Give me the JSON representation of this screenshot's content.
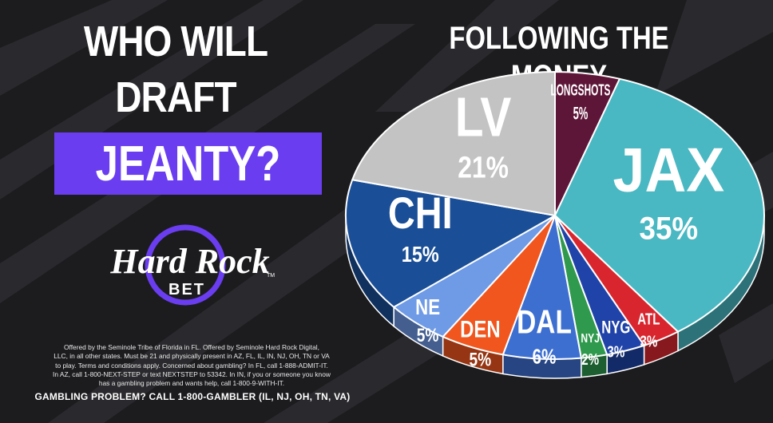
{
  "headline": {
    "line1": "WHO WILL",
    "line2": "DRAFT",
    "line3": "JEANTY?"
  },
  "brand": {
    "name": "Hard Rock",
    "sub": "BET",
    "tm": "TM"
  },
  "disclaimer": {
    "lines": [
      "Offered by the Seminole Tribe of Florida in FL. Offered by Seminole Hard Rock Digital,",
      "LLC, in all other states. Must be 21 and physically present in AZ, FL, IL, IN, NJ, OH, TN or VA",
      "to play. Terms and conditions apply. Concerned about gambling? In FL, call 1-888-ADMIT-IT.",
      "In AZ, call 1-800-NEXT-STEP or text NEXTSTEP to 53342. In IN, if you or someone you know",
      "has a gambling problem and wants help, call 1-800-9-WITH-IT."
    ],
    "helpline": "GAMBLING PROBLEM? CALL 1-800-GAMBLER (IL, NJ, OH, TN, VA)"
  },
  "colors": {
    "background": "#1c1c1f",
    "stripes": "#2a2a2e",
    "accent": "#6b3df0"
  },
  "chart_data": {
    "type": "pie",
    "title": "FOLLOWING THE MONEY",
    "categories": [
      "LONGSHOTS",
      "JAX",
      "ATL",
      "NYG",
      "NYJ",
      "DAL",
      "DEN",
      "NE",
      "CHI",
      "LV"
    ],
    "values": [
      5,
      35,
      3,
      3,
      2,
      6,
      5,
      5,
      15,
      21
    ],
    "value_labels": [
      "5%",
      "35%",
      "3%",
      "3%",
      "2%",
      "6%",
      "5%",
      "5%",
      "15%",
      "21%"
    ],
    "colors": [
      "#5e1638",
      "#49b8c2",
      "#d9262e",
      "#1f43a8",
      "#2f9a4d",
      "#3d6fd1",
      "#f0561e",
      "#6e9ae6",
      "#1a4e96",
      "#c3c3c3"
    ],
    "style": "3d"
  }
}
